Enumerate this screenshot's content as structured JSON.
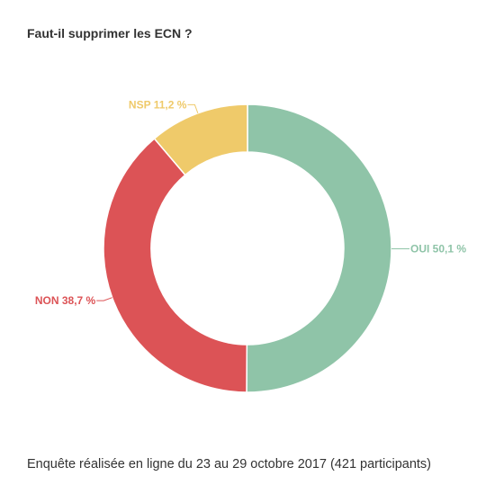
{
  "chart_data": {
    "type": "pie",
    "variant": "donut",
    "title": "Faut-il supprimer les ECN ?",
    "slices": [
      {
        "label": "OUI",
        "value": 50.1,
        "display": "OUI 50,1 %",
        "color": "#8fc4a8",
        "label_side": "right"
      },
      {
        "label": "NON",
        "value": 38.7,
        "display": "NON 38,7 %",
        "color": "#dc5356",
        "label_side": "left"
      },
      {
        "label": "NSP",
        "value": 11.2,
        "display": "NSP 11,2 %",
        "color": "#efca6a",
        "label_side": "left"
      }
    ],
    "legend": "none"
  },
  "footer": "Enquête réalisée en ligne du 23 au 29 octobre 2017 (421 participants)"
}
